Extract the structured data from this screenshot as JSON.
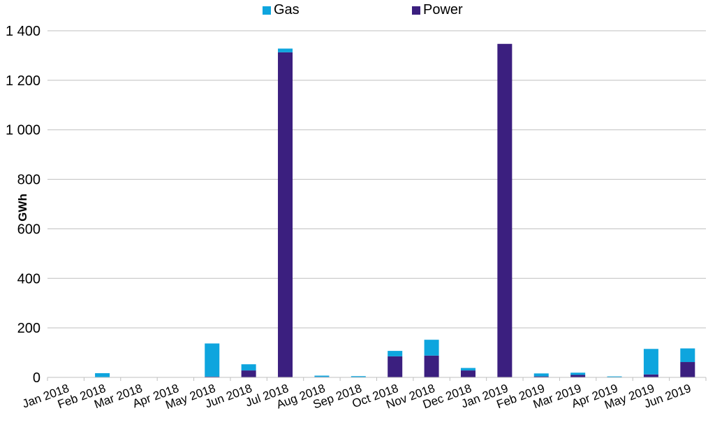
{
  "chart_data": {
    "type": "bar",
    "stacked": true,
    "title": "",
    "xlabel": "",
    "ylabel": "GWh",
    "ylim": [
      0,
      1400
    ],
    "yticks": [
      0,
      200,
      400,
      600,
      800,
      1000,
      1200,
      1400
    ],
    "ytick_labels": [
      "0",
      "200",
      "400",
      "600",
      "800",
      "1 000",
      "1 200",
      "1 400"
    ],
    "grid": "horizontal",
    "legend_position": "top-center",
    "categories": [
      "Jan 2018",
      "Feb 2018",
      "Mar 2018",
      "Apr 2018",
      "May 2018",
      "Jun 2018",
      "Jul 2018",
      "Aug 2018",
      "Sep 2018",
      "Oct 2018",
      "Nov 2018",
      "Dec 2018",
      "Jan 2019",
      "Feb 2019",
      "Mar 2019",
      "Apr 2019",
      "May 2019",
      "Jun 2019"
    ],
    "series": [
      {
        "name": "Power",
        "color": "#3b1f7f",
        "values": [
          0,
          0,
          0,
          0,
          3,
          28,
          1313,
          2,
          1,
          85,
          88,
          28,
          1347,
          4,
          10,
          1,
          12,
          62
        ]
      },
      {
        "name": "Gas",
        "color": "#0ea5de",
        "values": [
          0,
          17,
          0,
          0,
          134,
          25,
          15,
          5,
          4,
          22,
          64,
          10,
          0,
          12,
          9,
          3,
          103,
          55
        ]
      }
    ]
  }
}
